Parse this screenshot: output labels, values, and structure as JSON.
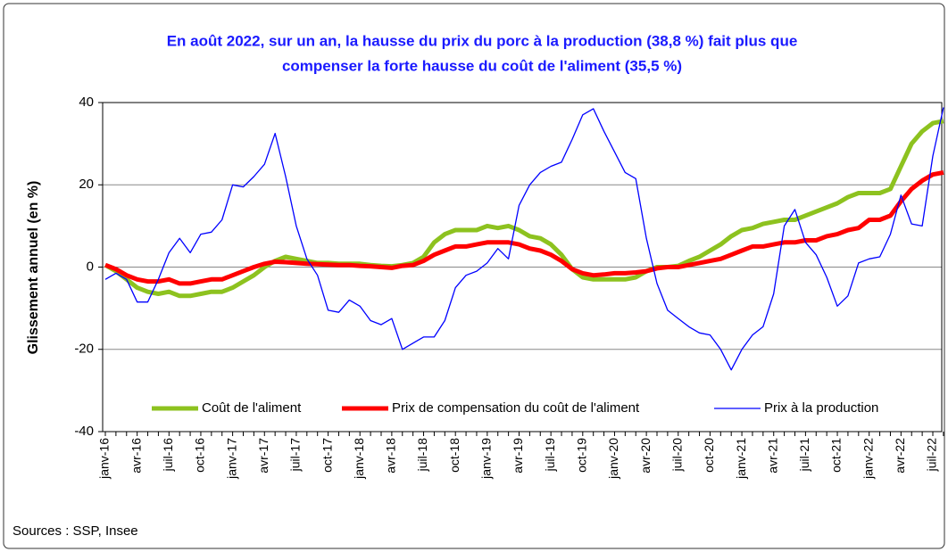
{
  "chart_data": {
    "type": "line",
    "title": [
      "En août 2022, sur un an, la hausse  du prix du porc à la production (38,8 %) fait plus que",
      "compenser la forte hausse du coût de l'aliment (35,5 %)"
    ],
    "y_label": "Glissement annuel (en %)",
    "source": "Sources : SSP, Insee",
    "categories": [
      "janv-16",
      null,
      null,
      "avr-16",
      null,
      null,
      "juil-16",
      null,
      null,
      "oct-16",
      null,
      null,
      "janv-17",
      null,
      null,
      "avr-17",
      null,
      null,
      "juil-17",
      null,
      null,
      "oct-17",
      null,
      null,
      "janv-18",
      null,
      null,
      "avr-18",
      null,
      null,
      "juil-18",
      null,
      null,
      "oct-18",
      null,
      null,
      "janv-19",
      null,
      null,
      "avr-19",
      null,
      null,
      "juil-19",
      null,
      null,
      "oct-19",
      null,
      null,
      "janv-20",
      null,
      null,
      "avr-20",
      null,
      null,
      "juil-20",
      null,
      null,
      "oct-20",
      null,
      null,
      "janv-21",
      null,
      null,
      "avr-21",
      null,
      null,
      "juil-21",
      null,
      null,
      "oct-21",
      null,
      null,
      "janv-22",
      null,
      null,
      "avr-22",
      null,
      null,
      "juil-22",
      null
    ],
    "series": [
      {
        "name": "Coût de l'aliment",
        "color": "#8dc21f",
        "width": 5,
        "values": [
          0.5,
          -1,
          -3,
          -5,
          -6,
          -6.5,
          -6,
          -7,
          -7,
          -6.5,
          -6,
          -6,
          -5,
          -3.5,
          -2,
          0,
          1.5,
          2.5,
          2,
          1.5,
          1,
          1,
          0.8,
          0.8,
          0.8,
          0.5,
          0.3,
          0.2,
          0.5,
          1,
          2.5,
          6,
          8,
          9,
          9,
          9,
          10,
          9.5,
          10,
          9,
          7.5,
          7,
          5.5,
          3,
          -0.5,
          -2.5,
          -3,
          -3,
          -3,
          -3,
          -2.5,
          -1,
          0,
          0,
          0.3,
          1.5,
          2.5,
          4,
          5.5,
          7.5,
          9,
          9.5,
          10.5,
          11,
          11.5,
          11.5,
          12.5,
          13.5,
          14.5,
          15.5,
          17,
          18,
          18,
          18,
          19,
          24.5,
          30,
          33,
          35,
          35.5
        ]
      },
      {
        "name": "Prix de compensation du coût de l'aliment",
        "color": "#ff0000",
        "width": 5,
        "values": [
          0.5,
          -0.5,
          -2,
          -3,
          -3.5,
          -3.5,
          -3,
          -4,
          -4,
          -3.5,
          -3,
          -3,
          -2,
          -1,
          0,
          0.8,
          1.3,
          1.2,
          1,
          0.8,
          0.7,
          0.6,
          0.5,
          0.5,
          0.3,
          0.2,
          0,
          -0.2,
          0.3,
          0.5,
          1.5,
          3,
          4,
          5,
          5,
          5.5,
          6,
          6,
          6,
          5.5,
          4.5,
          4,
          3,
          1.5,
          -0.5,
          -1.5,
          -2,
          -1.8,
          -1.5,
          -1.5,
          -1.3,
          -1,
          -0.3,
          0,
          0,
          0.5,
          1,
          1.5,
          2,
          3,
          4,
          5,
          5,
          5.5,
          6,
          6,
          6.5,
          6.5,
          7.5,
          8,
          9,
          9.5,
          11.5,
          11.5,
          12.5,
          16,
          19,
          21,
          22.5,
          23
        ]
      },
      {
        "name": "Prix à la production",
        "color": "#0000ff",
        "width": 1.3,
        "values": [
          -3,
          -1.5,
          -3,
          -8.5,
          -8.5,
          -3,
          3.5,
          7,
          3.5,
          8,
          8.5,
          11.5,
          20,
          19.5,
          22,
          25,
          32.5,
          22,
          10,
          2,
          -2,
          -10.5,
          -11,
          -8,
          -9.5,
          -13,
          -14,
          -12.5,
          -20,
          -18.5,
          -17,
          -17,
          -13,
          -5,
          -2,
          -1,
          1,
          4.5,
          2,
          15,
          20,
          23,
          24.5,
          25.5,
          31,
          37,
          38.5,
          33,
          28,
          23,
          21.5,
          7,
          -4,
          -10.5,
          -12.5,
          -14.5,
          -16,
          -16.5,
          -20,
          -25,
          -20,
          -16.5,
          -14.5,
          -6.5,
          10,
          14,
          6,
          3,
          -2.5,
          -9.5,
          -7,
          1,
          2,
          2.5,
          8,
          17.5,
          10.5,
          10,
          27,
          38.8
        ]
      }
    ],
    "ylim": [
      -40,
      40
    ],
    "yticks": [
      -40,
      -20,
      0,
      20,
      40
    ],
    "grid": true
  }
}
